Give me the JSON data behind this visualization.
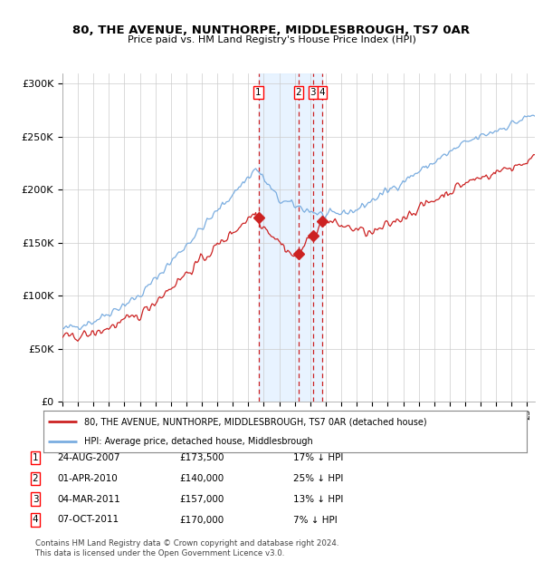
{
  "title1": "80, THE AVENUE, NUNTHORPE, MIDDLESBROUGH, TS7 0AR",
  "title2": "Price paid vs. HM Land Registry's House Price Index (HPI)",
  "ylabel_ticks": [
    "£0",
    "£50K",
    "£100K",
    "£150K",
    "£200K",
    "£250K",
    "£300K"
  ],
  "ytick_vals": [
    0,
    50000,
    100000,
    150000,
    200000,
    250000,
    300000
  ],
  "ylim": [
    0,
    310000
  ],
  "xlim_start": 1995.0,
  "xlim_end": 2025.5,
  "legend_line1": "80, THE AVENUE, NUNTHORPE, MIDDLESBROUGH, TS7 0AR (detached house)",
  "legend_line2": "HPI: Average price, detached house, Middlesbrough",
  "transactions": [
    {
      "num": 1,
      "date": "24-AUG-2007",
      "price": 173500,
      "pct": "17%",
      "year": 2007.65
    },
    {
      "num": 2,
      "date": "01-APR-2010",
      "price": 140000,
      "pct": "25%",
      "year": 2010.25
    },
    {
      "num": 3,
      "date": "04-MAR-2011",
      "price": 157000,
      "pct": "13%",
      "year": 2011.17
    },
    {
      "num": 4,
      "date": "07-OCT-2011",
      "price": 170000,
      "pct": "7%",
      "year": 2011.77
    }
  ],
  "footer1": "Contains HM Land Registry data © Crown copyright and database right 2024.",
  "footer2": "This data is licensed under the Open Government Licence v3.0.",
  "hpi_color": "#7aade0",
  "sale_color": "#cc2222",
  "shade_color": "#ddeeff",
  "grid_color": "#cccccc",
  "background_color": "#ffffff"
}
